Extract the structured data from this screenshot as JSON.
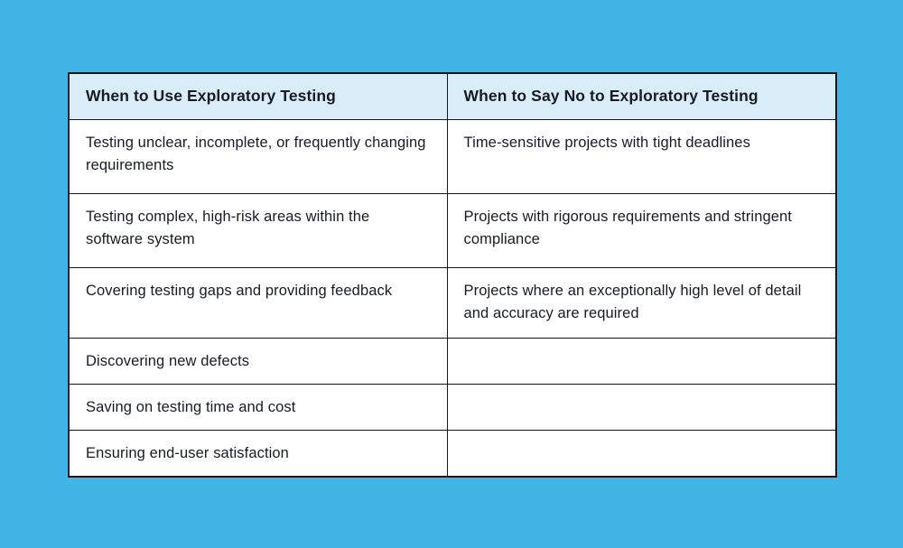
{
  "page": {
    "background_color": "#41B6E6",
    "table_border_color": "#15191D",
    "header_bg_color": "#D9EDF9",
    "body_bg_color": "#FFFFFF",
    "text_color": "#181C22"
  },
  "table": {
    "columns": [
      {
        "label": "When to Use Exploratory Testing"
      },
      {
        "label": "When to Say No to Exploratory Testing"
      }
    ],
    "rows": [
      {
        "use": "Testing unclear, incomplete, or frequently changing requirements",
        "say_no": "Time-sensitive projects with tight deadlines"
      },
      {
        "use": "Testing complex, high-risk areas within the software system",
        "say_no": "Projects with rigorous requirements and stringent compliance"
      },
      {
        "use": "Covering testing gaps and providing feedback",
        "say_no": "Projects where an exceptionally high level of detail and accuracy are required"
      },
      {
        "use": "Discovering new defects",
        "say_no": ""
      },
      {
        "use": "Saving on testing time and cost",
        "say_no": ""
      },
      {
        "use": "Ensuring end-user satisfaction",
        "say_no": ""
      }
    ]
  }
}
